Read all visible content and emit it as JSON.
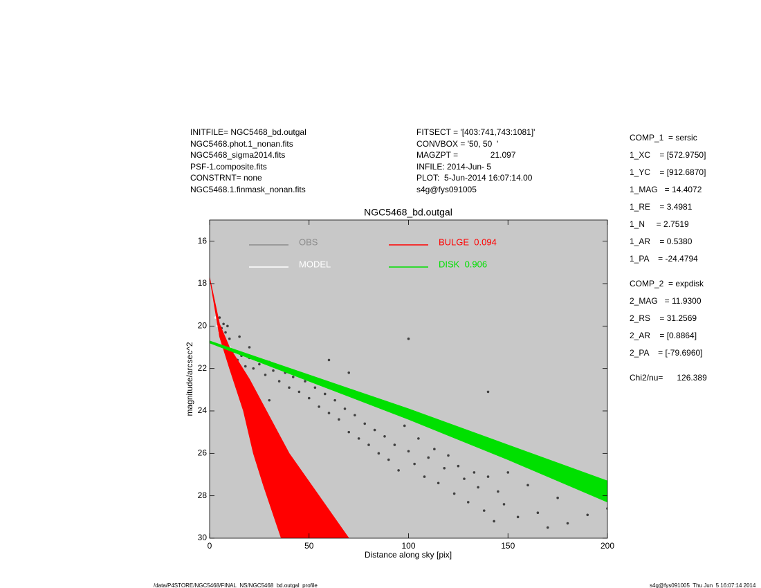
{
  "header": {
    "left": [
      "INITFILE= NGC5468_bd.outgal",
      "NGC5468.phot.1_nonan.fits",
      "NGC5468_sigma2014.fits",
      "PSF-1.composite.fits",
      "CONSTRNT= none",
      "NGC5468.1.finmask_nonan.fits"
    ],
    "middle": [
      "FITSECT = '[403:741,743:1081]'",
      "CONVBOX = '50, 50  '",
      "MAGZPT =              21.097",
      "INFILE: 2014-Jun- 5",
      "PLOT:  5-Jun-2014 16:07:14.00",
      "s4g@fys091005"
    ]
  },
  "params": {
    "blocks": [
      [
        "COMP_1  = sersic",
        "1_XC    = [572.9750]",
        "1_YC    = [912.6870]",
        "1_MAG   = 14.4072",
        "1_RE    = 3.4981",
        "1_N     = 2.7519",
        "1_AR    = 0.5380",
        "1_PA    = -24.4794"
      ],
      [
        "COMP_2  = expdisk",
        "2_MAG   = 11.9300",
        "2_RS    = 31.2569",
        "2_AR    = [0.8864]",
        "2_PA    = [-79.6960]"
      ],
      [
        "Chi2/nu=      126.389"
      ]
    ]
  },
  "footer": {
    "left": "/data/P4STORE/NGC5468/FINAL_NS/NGC5468_bd.outgal_profile",
    "right": "s4g@fys091005  Thu Jun  5 16:07:14 2014"
  },
  "chart_data": {
    "type": "scatter",
    "title": "NGC5468_bd.outgal",
    "x_label": "Distance along sky [pix]",
    "y_label": "magnitude/arcsec^2",
    "xlim": [
      0,
      200
    ],
    "ylim": [
      30,
      15
    ],
    "xticks": [
      0,
      50,
      100,
      150,
      200
    ],
    "yticks": [
      16,
      18,
      20,
      22,
      24,
      26,
      28,
      30
    ],
    "background": "#c8c8c8",
    "grid": false,
    "series": [
      {
        "name": "OBS",
        "kind": "points",
        "color": "#404040",
        "legend_color": "#8c8c8c",
        "x": [
          5,
          6,
          7,
          8,
          9,
          10,
          12,
          14,
          16,
          18,
          20,
          22,
          25,
          28,
          30,
          32,
          35,
          38,
          40,
          42,
          45,
          48,
          50,
          53,
          55,
          58,
          60,
          63,
          65,
          68,
          70,
          73,
          75,
          78,
          80,
          83,
          85,
          88,
          90,
          93,
          95,
          98,
          100,
          103,
          105,
          108,
          110,
          113,
          115,
          118,
          120,
          123,
          125,
          128,
          130,
          133,
          135,
          138,
          140,
          143,
          145,
          148,
          150,
          155,
          160,
          165,
          170,
          175,
          180,
          185,
          190,
          195,
          200,
          30,
          60,
          70,
          140,
          100,
          20,
          15
        ],
        "values": [
          19.6,
          20.1,
          19.9,
          20.3,
          20.0,
          20.6,
          21.2,
          21.6,
          21.4,
          21.9,
          21.5,
          22.0,
          21.8,
          22.3,
          21.7,
          22.1,
          22.6,
          22.2,
          22.9,
          22.4,
          23.1,
          22.6,
          23.4,
          22.9,
          23.8,
          23.2,
          24.1,
          23.5,
          24.4,
          23.9,
          25.0,
          24.2,
          25.3,
          24.6,
          25.6,
          24.9,
          26.0,
          25.2,
          26.3,
          25.6,
          26.8,
          24.7,
          25.9,
          26.5,
          25.3,
          27.1,
          26.2,
          25.8,
          27.4,
          26.7,
          26.1,
          27.9,
          26.6,
          27.2,
          28.3,
          26.9,
          27.6,
          28.7,
          27.1,
          29.2,
          27.8,
          28.4,
          26.9,
          29.0,
          27.5,
          28.8,
          29.5,
          28.1,
          29.3,
          27.4,
          28.9,
          27.9,
          28.6,
          23.5,
          21.6,
          22.2,
          23.1,
          20.6,
          21.0,
          20.5
        ]
      },
      {
        "name": "MODEL",
        "kind": "points",
        "color": "#ffffff",
        "legend_color": "#ffffff",
        "x": [
          3,
          4,
          5,
          6,
          8,
          10,
          170,
          180,
          185,
          190,
          195,
          200
        ],
        "values": [
          19.6,
          20.0,
          20.3,
          20.5,
          20.8,
          21.0,
          26.5,
          26.9,
          27.2,
          27.4,
          27.6,
          27.8
        ]
      },
      {
        "name": "BULGE  0.094",
        "kind": "band",
        "color": "#ff0000",
        "legend_color": "#ff0000",
        "x": [
          0,
          5,
          10,
          17,
          22,
          27,
          36
        ],
        "values": [
          17.7,
          20.5,
          22.0,
          24.0,
          26.0,
          27.5,
          30.0
        ],
        "x2": [
          0,
          5,
          10,
          20,
          40,
          55,
          70
        ],
        "values2": [
          17.7,
          19.9,
          21.0,
          22.5,
          26.0,
          28.0,
          30.0
        ]
      },
      {
        "name": "DISK  0.906",
        "kind": "band",
        "color": "#00e000",
        "legend_color": "#00e000",
        "x": [
          0,
          50,
          100,
          150,
          200
        ],
        "values": [
          20.7,
          22.3,
          23.9,
          25.6,
          27.3
        ],
        "x2": [
          0,
          50,
          100,
          150,
          200
        ],
        "values2": [
          20.8,
          22.6,
          24.4,
          26.3,
          28.3
        ]
      }
    ]
  }
}
